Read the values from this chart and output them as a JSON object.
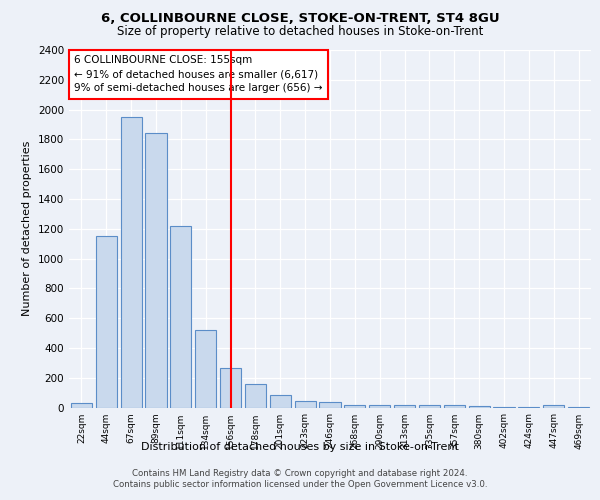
{
  "title1": "6, COLLINBOURNE CLOSE, STOKE-ON-TRENT, ST4 8GU",
  "title2": "Size of property relative to detached houses in Stoke-on-Trent",
  "xlabel": "Distribution of detached houses by size in Stoke-on-Trent",
  "ylabel": "Number of detached properties",
  "categories": [
    "22sqm",
    "44sqm",
    "67sqm",
    "89sqm",
    "111sqm",
    "134sqm",
    "156sqm",
    "178sqm",
    "201sqm",
    "223sqm",
    "246sqm",
    "268sqm",
    "290sqm",
    "313sqm",
    "335sqm",
    "357sqm",
    "380sqm",
    "402sqm",
    "424sqm",
    "447sqm",
    "469sqm"
  ],
  "values": [
    30,
    1150,
    1950,
    1840,
    1220,
    520,
    265,
    155,
    85,
    45,
    35,
    20,
    20,
    20,
    15,
    15,
    10,
    5,
    5,
    20,
    5
  ],
  "bar_color": "#c9d9ed",
  "bar_edge_color": "#5b8dc8",
  "red_line_index": 6,
  "annotation_text": "6 COLLINBOURNE CLOSE: 155sqm\n← 91% of detached houses are smaller (6,617)\n9% of semi-detached houses are larger (656) →",
  "ylim": [
    0,
    2400
  ],
  "yticks": [
    0,
    200,
    400,
    600,
    800,
    1000,
    1200,
    1400,
    1600,
    1800,
    2000,
    2200,
    2400
  ],
  "footnote1": "Contains HM Land Registry data © Crown copyright and database right 2024.",
  "footnote2": "Contains public sector information licensed under the Open Government Licence v3.0.",
  "bg_color": "#edf1f8",
  "plot_bg_color": "#edf1f8"
}
